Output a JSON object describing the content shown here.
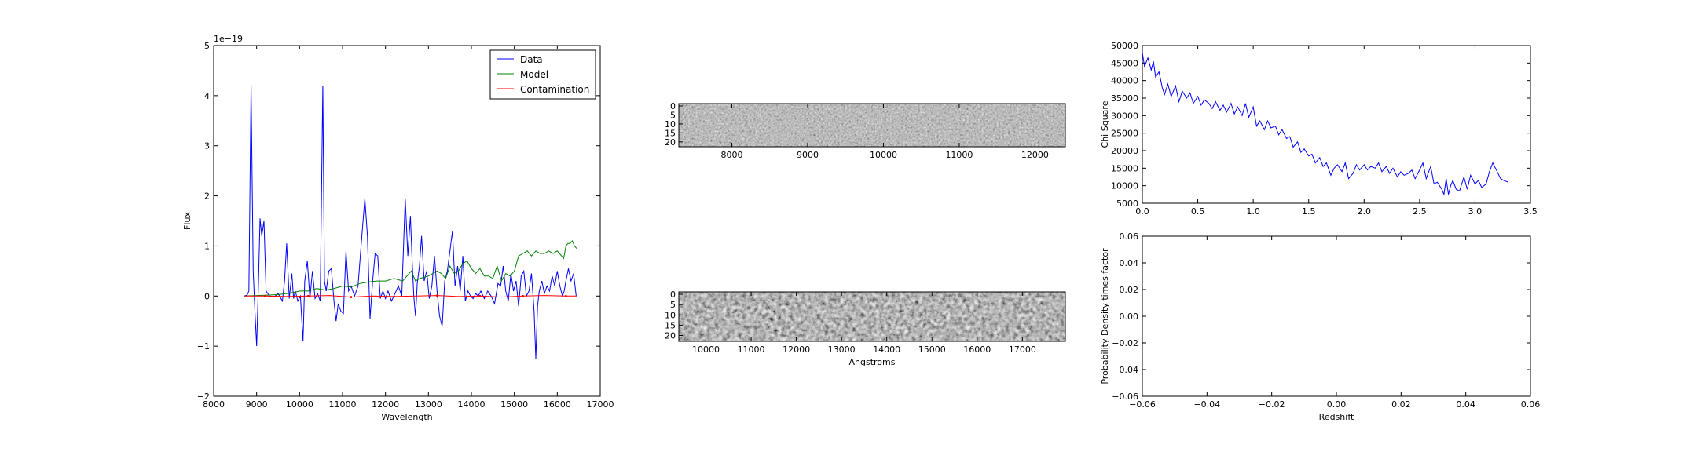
{
  "chart_data": [
    {
      "id": "spectrum",
      "type": "line",
      "title": "",
      "xlabel": "Wavelength",
      "ylabel": "Flux",
      "offset_label": "1e−19",
      "xlim": [
        8000,
        17000
      ],
      "ylim": [
        -2,
        5
      ],
      "xticks": [
        8000,
        9000,
        10000,
        11000,
        12000,
        13000,
        14000,
        15000,
        16000,
        17000
      ],
      "yticks": [
        -2,
        -1,
        0,
        1,
        2,
        3,
        4,
        5
      ],
      "legend": {
        "placement": "top-right",
        "entries": [
          "Data",
          "Model",
          "Contamination"
        ]
      },
      "series": [
        {
          "name": "Data",
          "color": "#0000ff",
          "x": [
            8700,
            8780,
            8820,
            8870,
            8920,
            8960,
            9000,
            9040,
            9080,
            9120,
            9170,
            9220,
            9300,
            9400,
            9500,
            9600,
            9650,
            9700,
            9760,
            9820,
            9860,
            9900,
            9960,
            10020,
            10080,
            10120,
            10180,
            10240,
            10300,
            10360,
            10420,
            10480,
            10540,
            10580,
            10620,
            10680,
            10740,
            10800,
            10850,
            10900,
            10960,
            11020,
            11080,
            11140,
            11200,
            11280,
            11360,
            11440,
            11520,
            11580,
            11640,
            11700,
            11760,
            11820,
            11880,
            11940,
            12000,
            12060,
            12140,
            12220,
            12300,
            12380,
            12460,
            12520,
            12580,
            12620,
            12660,
            12700,
            12740,
            12790,
            12840,
            12900,
            12960,
            13020,
            13080,
            13140,
            13200,
            13260,
            13320,
            13380,
            13440,
            13500,
            13560,
            13620,
            13680,
            13740,
            13800,
            13860,
            13920,
            13980,
            14040,
            14100,
            14160,
            14220,
            14300,
            14380,
            14460,
            14540,
            14620,
            14680,
            14740,
            14800,
            14860,
            14920,
            14980,
            15040,
            15100,
            15160,
            15220,
            15280,
            15340,
            15400,
            15460,
            15500,
            15540,
            15580,
            15640,
            15700,
            15760,
            15820,
            15880,
            15940,
            16000,
            16060,
            16120,
            16160,
            16200,
            16260,
            16320,
            16380,
            16440
          ],
          "values": [
            0.0,
            0.02,
            0.1,
            4.2,
            0.5,
            -0.3,
            -1.0,
            0.2,
            1.55,
            1.2,
            1.5,
            0.1,
            0.0,
            -0.02,
            0.05,
            -0.1,
            0.3,
            1.05,
            -0.05,
            0.45,
            -0.05,
            0.1,
            -0.1,
            0.0,
            -0.9,
            0.3,
            0.7,
            -0.05,
            0.5,
            -0.05,
            0.05,
            -0.1,
            4.2,
            0.3,
            0.1,
            0.5,
            0.55,
            -0.1,
            -0.5,
            -0.15,
            -0.3,
            -0.35,
            0.9,
            0.1,
            0.2,
            0.0,
            0.2,
            1.1,
            1.95,
            1.2,
            -0.45,
            0.3,
            0.85,
            0.8,
            -0.05,
            0.1,
            -0.05,
            0.1,
            -0.1,
            0.05,
            0.2,
            0.0,
            1.95,
            0.8,
            1.6,
            0.7,
            0.0,
            -0.4,
            0.25,
            0.6,
            1.2,
            0.3,
            0.5,
            -0.05,
            0.2,
            0.8,
            0.1,
            -0.4,
            -0.6,
            0.3,
            0.5,
            0.9,
            1.3,
            0.2,
            0.6,
            0.1,
            0.8,
            -0.1,
            0.1,
            0.0,
            -0.05,
            0.05,
            0.0,
            0.1,
            -0.05,
            0.1,
            0.0,
            -0.15,
            0.25,
            0.2,
            0.6,
            0.1,
            -0.1,
            0.45,
            0.1,
            0.3,
            -0.2,
            0.4,
            0.5,
            0.0,
            0.1,
            0.45,
            -0.3,
            -1.25,
            -0.2,
            0.1,
            0.3,
            0.05,
            0.2,
            0.1,
            0.4,
            0.2,
            0.5,
            0.2,
            0.0,
            0.1,
            0.3,
            0.55,
            0.3,
            0.45,
            0.0
          ]
        },
        {
          "name": "Model",
          "color": "#008000",
          "x": [
            8700,
            9000,
            9300,
            9500,
            9700,
            9900,
            10000,
            10200,
            10400,
            10600,
            10800,
            11000,
            11200,
            11400,
            11600,
            11800,
            12000,
            12200,
            12400,
            12600,
            12700,
            12800,
            13000,
            13200,
            13300,
            13400,
            13500,
            13600,
            13700,
            13800,
            13900,
            14000,
            14100,
            14200,
            14300,
            14400,
            14500,
            14600,
            14700,
            14800,
            14900,
            15000,
            15100,
            15200,
            15300,
            15400,
            15500,
            15600,
            15700,
            15800,
            15900,
            16000,
            16050,
            16100,
            16150,
            16200,
            16250,
            16300,
            16350,
            16400,
            16450
          ],
          "values": [
            0.0,
            0.01,
            0.02,
            0.03,
            0.05,
            0.08,
            0.1,
            0.1,
            0.15,
            0.12,
            0.15,
            0.2,
            0.18,
            0.25,
            0.28,
            0.3,
            0.3,
            0.35,
            0.3,
            0.5,
            0.3,
            0.35,
            0.4,
            0.5,
            0.45,
            0.35,
            0.6,
            0.45,
            0.5,
            0.65,
            0.7,
            0.55,
            0.45,
            0.55,
            0.4,
            0.4,
            0.35,
            0.6,
            0.3,
            0.45,
            0.4,
            0.5,
            0.8,
            0.85,
            0.9,
            0.8,
            0.9,
            0.85,
            0.85,
            0.9,
            0.85,
            0.9,
            0.85,
            0.8,
            0.75,
            1.0,
            1.05,
            1.05,
            1.1,
            1.0,
            0.95
          ]
        },
        {
          "name": "Contamination",
          "color": "#ff0000",
          "x": [
            8700,
            9200,
            9700,
            10200,
            10700,
            11200,
            11700,
            12200,
            12700,
            13200,
            13700,
            14200,
            14700,
            15200,
            15700,
            16200,
            16450
          ],
          "values": [
            0.0,
            0.0,
            -0.01,
            0.0,
            0.01,
            -0.02,
            0.0,
            -0.01,
            0.0,
            0.01,
            -0.01,
            0.0,
            -0.02,
            0.0,
            0.01,
            0.0,
            0.0
          ]
        }
      ]
    },
    {
      "id": "image_top",
      "type": "heatmap",
      "title": "",
      "xlabel": "",
      "xlim": [
        7300,
        12400
      ],
      "ylim": [
        24,
        0
      ],
      "xticks": [
        8000,
        9000,
        10000,
        11000,
        12000
      ],
      "yticks": [
        0,
        5,
        10,
        15,
        20
      ],
      "colormap": "gray"
    },
    {
      "id": "image_bottom",
      "type": "heatmap",
      "title": "",
      "xlabel": "Angstroms",
      "xlim": [
        9400,
        17950
      ],
      "ylim": [
        24,
        0
      ],
      "xticks": [
        10000,
        11000,
        12000,
        13000,
        14000,
        15000,
        16000,
        17000
      ],
      "yticks": [
        0,
        5,
        10,
        15,
        20
      ],
      "colormap": "gray"
    },
    {
      "id": "chisq",
      "type": "line",
      "title": "",
      "xlabel": "",
      "ylabel": "Chi Square",
      "xlim": [
        0.0,
        3.5
      ],
      "ylim": [
        5000,
        50000
      ],
      "xticks": [
        0.0,
        0.5,
        1.0,
        1.5,
        2.0,
        2.5,
        3.0,
        3.5
      ],
      "yticks": [
        5000,
        10000,
        15000,
        20000,
        25000,
        30000,
        35000,
        40000,
        45000,
        50000
      ],
      "series": [
        {
          "name": "chi-square",
          "color": "#0000ff",
          "x": [
            0.0,
            0.02,
            0.05,
            0.08,
            0.1,
            0.12,
            0.15,
            0.18,
            0.2,
            0.23,
            0.26,
            0.3,
            0.33,
            0.36,
            0.4,
            0.43,
            0.46,
            0.5,
            0.53,
            0.56,
            0.6,
            0.63,
            0.66,
            0.7,
            0.73,
            0.76,
            0.8,
            0.83,
            0.86,
            0.9,
            0.93,
            0.96,
            1.0,
            1.03,
            1.06,
            1.1,
            1.13,
            1.16,
            1.2,
            1.23,
            1.26,
            1.3,
            1.33,
            1.36,
            1.4,
            1.43,
            1.46,
            1.5,
            1.53,
            1.56,
            1.6,
            1.63,
            1.66,
            1.7,
            1.73,
            1.76,
            1.8,
            1.83,
            1.86,
            1.9,
            1.93,
            1.96,
            2.0,
            2.03,
            2.06,
            2.1,
            2.13,
            2.16,
            2.2,
            2.23,
            2.26,
            2.3,
            2.33,
            2.36,
            2.4,
            2.43,
            2.46,
            2.5,
            2.53,
            2.56,
            2.6,
            2.63,
            2.66,
            2.7,
            2.72,
            2.74,
            2.76,
            2.78,
            2.8,
            2.83,
            2.86,
            2.9,
            2.93,
            2.96,
            3.0,
            3.03,
            3.06,
            3.1,
            3.13,
            3.16,
            3.2,
            3.23,
            3.26,
            3.3
          ],
          "values": [
            48000,
            44000,
            46500,
            43000,
            45500,
            41000,
            42500,
            38000,
            36000,
            39000,
            35500,
            38500,
            34000,
            37000,
            35000,
            36500,
            33500,
            35500,
            33000,
            34500,
            33500,
            32000,
            34000,
            31500,
            33000,
            31000,
            33500,
            30500,
            32500,
            30000,
            33500,
            29500,
            32500,
            27000,
            28500,
            26000,
            28500,
            26500,
            27000,
            24500,
            26000,
            23500,
            24000,
            21000,
            22500,
            19500,
            20500,
            18500,
            19000,
            16500,
            18000,
            15500,
            16500,
            13000,
            15000,
            16000,
            14000,
            16500,
            12000,
            13500,
            16000,
            14500,
            16000,
            14500,
            15500,
            15000,
            16500,
            14000,
            15500,
            13500,
            15000,
            12500,
            14000,
            13000,
            13500,
            14500,
            12000,
            14500,
            16500,
            12000,
            15500,
            10500,
            11000,
            9000,
            7500,
            12000,
            7500,
            10000,
            11500,
            9000,
            8500,
            12500,
            9000,
            13000,
            10500,
            11500,
            9500,
            10500,
            14000,
            16500,
            14000,
            12000,
            11500,
            11000
          ]
        }
      ]
    },
    {
      "id": "probability",
      "type": "line",
      "title": "",
      "xlabel": "Redshift",
      "ylabel": "Probability Density times factor",
      "xlim": [
        -0.06,
        0.06
      ],
      "ylim": [
        -0.06,
        0.06
      ],
      "xticks": [
        -0.06,
        -0.04,
        -0.02,
        0.0,
        0.02,
        0.04,
        0.06
      ],
      "yticks": [
        -0.06,
        -0.04,
        -0.02,
        0.0,
        0.02,
        0.04,
        0.06
      ],
      "series": []
    }
  ]
}
